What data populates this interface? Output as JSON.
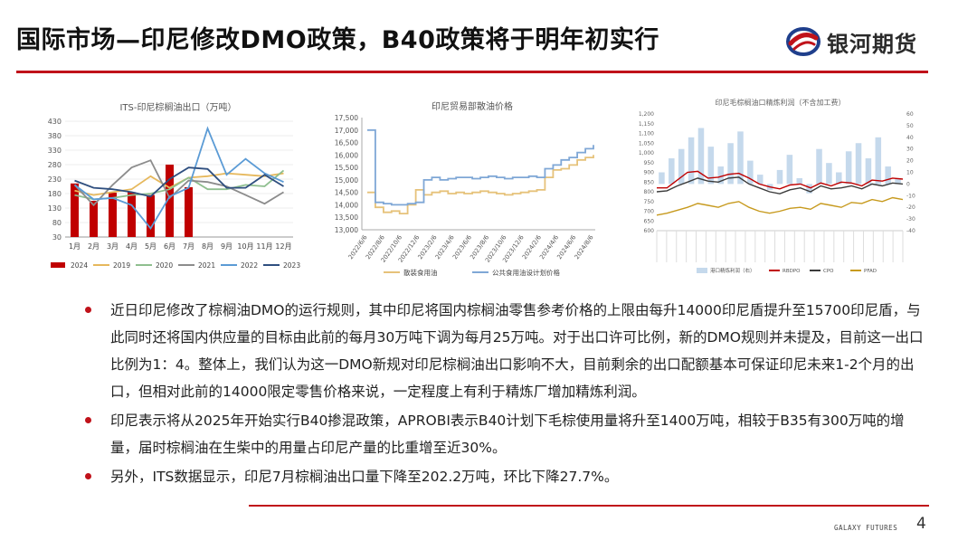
{
  "slide": {
    "title": "国际市场—印尼修改DMO政策，B40政策将于明年初实行",
    "logo_text": "银河期货",
    "footer_text": "GALAXY FUTURES",
    "page_number": "4",
    "colors": {
      "accent": "#c0121a",
      "logo_blue": "#1f3f8c"
    }
  },
  "bullets": [
    "近日印尼修改了棕榈油DMO的运行规则，其中印尼将国内棕榈油零售参考价格的上限由每升14000印尼盾提升至15700印尼盾，与此同时还将国内供应量的目标由此前的每月30万吨下调为每月25万吨。对于出口许可比例，新的DMO规则并未提及，目前这一出口比例为1：4。整体上，我们认为这一DMO新规对印尼棕榈油出口影响不大，目前剩余的出口配额基本可保证印尼未来1-2个月的出口，但相对此前的14000限定零售价格来说，一定程度上有利于精炼厂增加精炼利润。",
    "印尼表示将从2025年开始实行B40掺混政策，APROBI表示B40计划下毛棕使用量将升至1400万吨，相较于B35有300万吨的增量，届时棕榈油在生柴中的用量占印尼产量的比重增至近30%。",
    "另外，ITS数据显示，印尼7月棕榈油出口量下降至202.2万吨，环比下降27.7%。"
  ],
  "chart_data": [
    {
      "type": "bar",
      "title": "ITS-印尼棕榈油出口（万吨）",
      "categories": [
        "1月",
        "2月",
        "3月",
        "4月",
        "5月",
        "6月",
        "7月",
        "8月",
        "9月",
        "10月",
        "11月",
        "12月"
      ],
      "ylim": [
        30,
        430
      ],
      "yticks": [
        30,
        80,
        130,
        180,
        230,
        280,
        330,
        380,
        430
      ],
      "series": [
        {
          "name": "2024",
          "kind": "bar",
          "color": "#c00000",
          "values": [
            215,
            155,
            183,
            185,
            175,
            280,
            202.2,
            null,
            null,
            null,
            null,
            null
          ]
        },
        {
          "name": "2019",
          "kind": "line",
          "color": "#e6b85c",
          "values": [
            190,
            175,
            185,
            195,
            240,
            200,
            235,
            240,
            250,
            245,
            240,
            250
          ]
        },
        {
          "name": "2020",
          "kind": "line",
          "color": "#8fbf8f",
          "values": [
            175,
            160,
            165,
            175,
            180,
            195,
            235,
            195,
            195,
            210,
            205,
            260
          ]
        },
        {
          "name": "2021",
          "kind": "line",
          "color": "#8c8c8c",
          "values": [
            210,
            140,
            210,
            270,
            295,
            165,
            225,
            220,
            205,
            175,
            145,
            185
          ]
        },
        {
          "name": "2022",
          "kind": "line",
          "color": "#5b9bd5",
          "values": [
            210,
            160,
            165,
            140,
            60,
            170,
            200,
            405,
            245,
            300,
            250,
            220
          ]
        },
        {
          "name": "2023",
          "kind": "line",
          "color": "#2f4f7f",
          "values": [
            225,
            200,
            195,
            185,
            170,
            230,
            270,
            265,
            200,
            200,
            245,
            205
          ]
        }
      ]
    },
    {
      "type": "line",
      "title": "印尼贸易部散油价格",
      "ylim": [
        13000,
        17500
      ],
      "yticks": [
        13000,
        13500,
        14000,
        14500,
        15000,
        15500,
        16000,
        16500,
        17000,
        17500
      ],
      "x_ticks": [
        "2022/6/6",
        "2022/8/6",
        "2022/10/6",
        "2022/12/6",
        "2023/2/6",
        "2023/4/6",
        "2023/6/6",
        "2023/8/6",
        "2023/10/6",
        "2023/12/6",
        "2024/2/6",
        "2024/4/6",
        "2024/6/6",
        "2024/8/6"
      ],
      "series": [
        {
          "name": "散装食用油",
          "color": "#e6c27a",
          "values": [
            14500,
            13900,
            13700,
            13750,
            13650,
            14000,
            14600,
            14400,
            14500,
            14550,
            14450,
            14500,
            14450,
            14500,
            14550,
            14500,
            14450,
            14400,
            14450,
            14500,
            14550,
            14600,
            15100,
            15400,
            15450,
            15600,
            15800,
            15900,
            16000
          ]
        },
        {
          "name": "公共食用油设计划价格",
          "color": "#7fa7d6",
          "values": [
            17000,
            14100,
            14050,
            14000,
            14000,
            14050,
            14100,
            15000,
            15100,
            15000,
            15050,
            15100,
            15100,
            15050,
            15100,
            15150,
            15100,
            15050,
            15100,
            15100,
            15150,
            15100,
            15450,
            15600,
            15800,
            15900,
            16100,
            16250,
            16400
          ]
        }
      ]
    },
    {
      "type": "line",
      "title": "印尼毛棕榈油口精炼利润（不含加工费）",
      "ylim_left": [
        600,
        1200
      ],
      "yticks_left": [
        600,
        650,
        700,
        750,
        800,
        850,
        900,
        950,
        1000,
        1050,
        1100,
        1150,
        1200
      ],
      "ylim_right": [
        -40,
        60
      ],
      "yticks_right": [
        -40,
        -30,
        -20,
        -10,
        0,
        10,
        20,
        30,
        40,
        50,
        60
      ],
      "series": [
        {
          "name": "港口精炼利润（右）",
          "kind": "bar",
          "color": "#c5d9ec",
          "values": [
            10,
            22,
            30,
            40,
            48,
            32,
            15,
            35,
            45,
            20,
            8,
            -5,
            12,
            25,
            5,
            -8,
            30,
            18,
            10,
            28,
            35,
            22,
            40,
            15,
            5
          ]
        },
        {
          "name": "RBDPO",
          "color": "#c00000",
          "values": [
            820,
            820,
            860,
            900,
            905,
            870,
            875,
            890,
            895,
            870,
            840,
            825,
            815,
            835,
            840,
            820,
            845,
            830,
            850,
            845,
            830,
            860,
            855,
            870,
            865
          ]
        },
        {
          "name": "CPO",
          "color": "#3b3b3b",
          "values": [
            800,
            805,
            830,
            850,
            870,
            855,
            850,
            870,
            875,
            840,
            820,
            800,
            790,
            810,
            820,
            800,
            830,
            815,
            820,
            830,
            815,
            840,
            830,
            845,
            840
          ]
        },
        {
          "name": "PFAD",
          "color": "#c79a1e",
          "values": [
            680,
            690,
            705,
            720,
            740,
            730,
            720,
            740,
            750,
            720,
            700,
            690,
            700,
            715,
            720,
            710,
            740,
            730,
            720,
            745,
            740,
            760,
            750,
            770,
            760
          ]
        }
      ]
    }
  ]
}
